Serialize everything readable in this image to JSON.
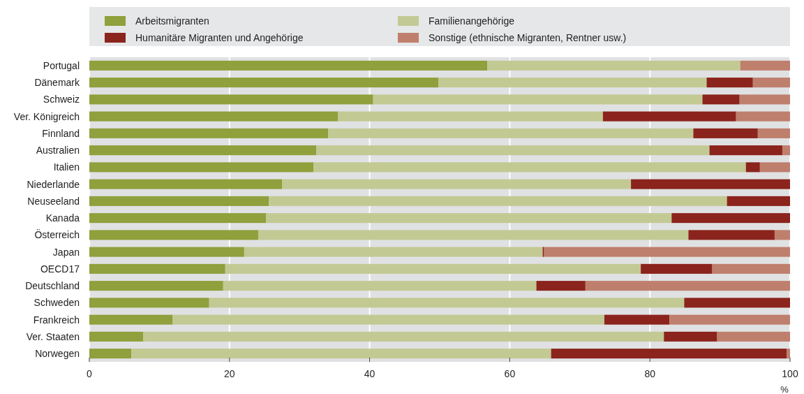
{
  "chart_data": {
    "type": "bar",
    "orientation": "horizontal",
    "stacked": true,
    "xlabel": "%",
    "categories": [
      "Portugal",
      "Dänemark",
      "Schweiz",
      "Ver. Königreich",
      "Finnland",
      "Australien",
      "Italien",
      "Niederlande",
      "Neuseeland",
      "Kanada",
      "Österreich",
      "Japan",
      "OECD17",
      "Deutschland",
      "Schweden",
      "Frankreich",
      "Ver. Staaten",
      "Norwegen"
    ],
    "series": [
      {
        "name": "Arbeitsmigranten",
        "color": "#8fa03c",
        "values": [
          56.8,
          49.8,
          40.5,
          35.5,
          34.1,
          32.4,
          32.0,
          27.5,
          25.6,
          25.2,
          24.1,
          22.1,
          19.4,
          19.1,
          17.1,
          11.9,
          7.7,
          6.0
        ]
      },
      {
        "name": "Familienangehörige",
        "color": "#c3c993",
        "values": [
          36.1,
          38.3,
          47.0,
          37.8,
          52.1,
          56.1,
          61.7,
          49.8,
          65.4,
          57.9,
          61.4,
          42.6,
          59.3,
          44.7,
          67.8,
          61.6,
          74.3,
          59.9
        ]
      },
      {
        "name": "Humanitäre Migranten und Angehörige",
        "color": "#8b241c",
        "values": [
          0,
          6.6,
          5.3,
          19.0,
          9.2,
          10.4,
          2.0,
          22.7,
          9.0,
          16.9,
          12.3,
          0.2,
          10.2,
          7.0,
          15.1,
          9.3,
          7.6,
          33.6
        ]
      },
      {
        "name": "Sonstige (ethnische Migranten, Rentner usw.)",
        "color": "#bf7f6d",
        "values": [
          7.1,
          5.3,
          7.2,
          7.7,
          4.6,
          1.1,
          4.3,
          0,
          0,
          0,
          2.2,
          35.1,
          11.1,
          29.2,
          0,
          17.2,
          10.4,
          0.5
        ]
      }
    ],
    "xlim": [
      0,
      100
    ],
    "xticks": [
      0,
      20,
      40,
      60,
      80,
      100
    ],
    "grid": "x",
    "legend": "top"
  }
}
